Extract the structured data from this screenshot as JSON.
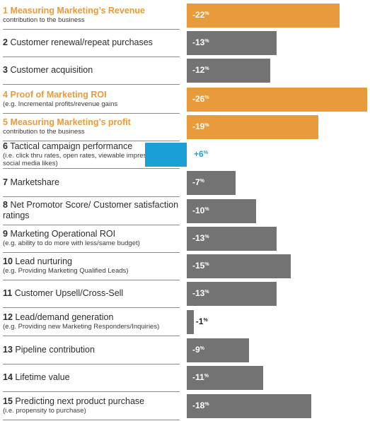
{
  "colors": {
    "orange": "#e99a3a",
    "gray": "#737373",
    "blue": "#1a9fd6"
  },
  "chart_data": {
    "type": "bar",
    "orientation": "horizontal",
    "categories": [
      {
        "num": "1",
        "title": "Measuring Marketing’s Revenue",
        "subtitle": "contribution to the business",
        "value": -22,
        "label": "-22",
        "highlight": true
      },
      {
        "num": "2",
        "title": "Customer renewal/repeat purchases",
        "subtitle": "",
        "value": -13,
        "label": "-13",
        "highlight": false
      },
      {
        "num": "3",
        "title": "Customer acquisition",
        "subtitle": "",
        "value": -12,
        "label": "-12",
        "highlight": false
      },
      {
        "num": "4",
        "title": "Proof of Marketing ROI",
        "subtitle": "(e.g. Incremental profits/revenue gains",
        "value": -26,
        "label": "-26",
        "highlight": true
      },
      {
        "num": "5",
        "title": "Measuring Marketing’s profit",
        "subtitle": "contribution to the business",
        "value": -19,
        "label": "-19",
        "highlight": true
      },
      {
        "num": "6",
        "title": "Tactical campaign performance",
        "subtitle": "(i.e. click thru rates, open rates, viewable impressions, social media likes)",
        "value": 6,
        "label": "+6",
        "highlight": false
      },
      {
        "num": "7",
        "title": "Marketshare",
        "subtitle": "",
        "value": -7,
        "label": "-7",
        "highlight": false
      },
      {
        "num": "8",
        "title": "Net Promotor Score/ Customer satisfaction ratings",
        "subtitle": "",
        "value": -10,
        "label": "-10",
        "highlight": false
      },
      {
        "num": "9",
        "title": "Marketing Operational ROI",
        "subtitle": "(e.g. ability to do more with less/same budget)",
        "value": -13,
        "label": "-13",
        "highlight": false
      },
      {
        "num": "10",
        "title": "Lead nurturing",
        "subtitle": "(e.g. Providing Marketing Qualified Leads)",
        "value": -15,
        "label": "-15",
        "highlight": false
      },
      {
        "num": "11",
        "title": "Customer Upsell/Cross-Sell",
        "subtitle": "",
        "value": -13,
        "label": "-13",
        "highlight": false
      },
      {
        "num": "12",
        "title": "Lead/demand generation",
        "subtitle": "(e.g. Providing new Marketing Responders/Inquiries)",
        "value": -1,
        "label": "-1",
        "highlight": false
      },
      {
        "num": "13",
        "title": "Pipeline contribution",
        "subtitle": "",
        "value": -9,
        "label": "-9",
        "highlight": false
      },
      {
        "num": "14",
        "title": "Lifetime value",
        "subtitle": "",
        "value": -11,
        "label": "-11",
        "highlight": false
      },
      {
        "num": "15",
        "title": "Predicting next product purchase",
        "subtitle": "(i.e. propensity to purchase)",
        "value": -18,
        "label": "-18",
        "highlight": false
      }
    ],
    "unit": "%",
    "grid": false,
    "legend": "none"
  }
}
